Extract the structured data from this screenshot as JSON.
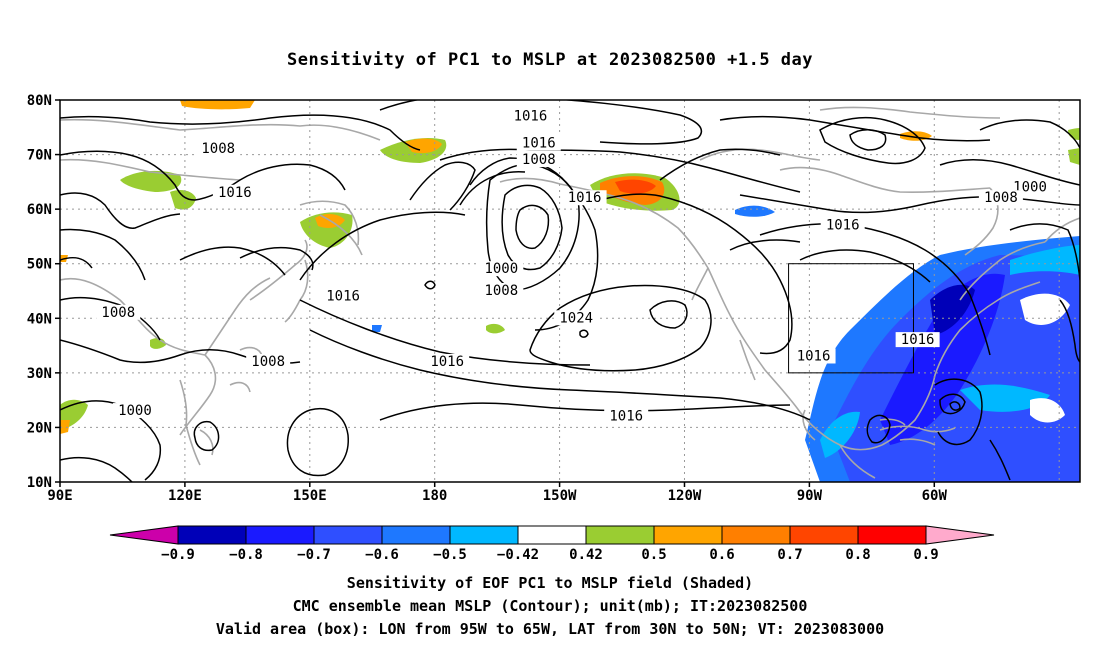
{
  "title": "Sensitivity of PC1 to MSLP at 2023082500 +1.5 day",
  "map": {
    "lat_labels": [
      "80N",
      "70N",
      "60N",
      "50N",
      "40N",
      "30N",
      "20N",
      "10N"
    ],
    "lon_labels": [
      "90E",
      "120E",
      "150E",
      "180",
      "150W",
      "120W",
      "90W",
      "60W"
    ],
    "lon_range": [
      90,
      335
    ],
    "lat_range": [
      10,
      80
    ],
    "valid_box": {
      "lon": [
        265,
        295
      ],
      "lat": [
        30,
        50
      ]
    },
    "contour_labels": [
      {
        "text": "1016",
        "lon": 203,
        "lat": 77
      },
      {
        "text": "1016",
        "lon": 205,
        "lat": 72
      },
      {
        "text": "1008",
        "lon": 205,
        "lat": 69
      },
      {
        "text": "1008",
        "lon": 128,
        "lat": 71
      },
      {
        "text": "1016",
        "lon": 132,
        "lat": 63
      },
      {
        "text": "1016",
        "lon": 216,
        "lat": 62
      },
      {
        "text": "1000",
        "lon": 323,
        "lat": 64
      },
      {
        "text": "1008",
        "lon": 316,
        "lat": 62
      },
      {
        "text": "1016",
        "lon": 278,
        "lat": 57
      },
      {
        "text": "1000",
        "lon": 196,
        "lat": 49
      },
      {
        "text": "1008",
        "lon": 196,
        "lat": 45
      },
      {
        "text": "1016",
        "lon": 158,
        "lat": 44
      },
      {
        "text": "1008",
        "lon": 104,
        "lat": 41
      },
      {
        "text": "1024",
        "lon": 214,
        "lat": 40
      },
      {
        "text": "1016",
        "lon": 183,
        "lat": 32
      },
      {
        "text": "1016",
        "lon": 271,
        "lat": 33
      },
      {
        "text": "1016",
        "lon": 296,
        "lat": 36
      },
      {
        "text": "1008",
        "lon": 140,
        "lat": 32
      },
      {
        "text": "1016",
        "lon": 226,
        "lat": 22
      },
      {
        "text": "1000",
        "lon": 108,
        "lat": 23
      }
    ]
  },
  "colorbar": {
    "labels": [
      "−0.9",
      "−0.8",
      "−0.7",
      "−0.6",
      "−0.5",
      "−0.42",
      "0.42",
      "0.5",
      "0.6",
      "0.7",
      "0.8",
      "0.9"
    ],
    "colors": [
      "#0000b8",
      "#1a1aff",
      "#2f4fff",
      "#1e78ff",
      "#00b8ff",
      "#ffffff",
      "#9acd32",
      "#ffa500",
      "#ff7f00",
      "#ff4500",
      "#ff0000"
    ],
    "low_end_color": "#cc00aa",
    "high_end_color": "#ffaacc"
  },
  "captions": [
    "Sensitivity of EOF PC1 to MSLP field (Shaded)",
    "CMC ensemble mean MSLP (Contour); unit(mb); IT:2023082500",
    "Valid area (box): LON from 95W to 65W, LAT from 30N to 50N; VT: 2023083000"
  ]
}
